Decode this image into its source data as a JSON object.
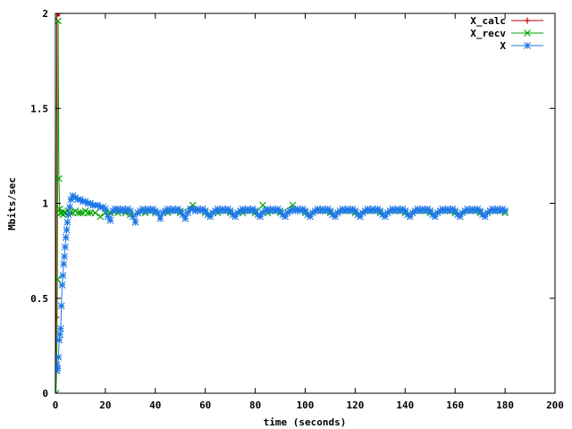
{
  "chart_data": {
    "type": "line",
    "title": "",
    "xlabel": "time (seconds)",
    "ylabel": "Mbits/sec",
    "xlim": [
      0,
      200
    ],
    "ylim": [
      0,
      2
    ],
    "x_ticks": [
      "0",
      "20",
      "40",
      "60",
      "80",
      "100",
      "120",
      "140",
      "160",
      "180",
      "200"
    ],
    "y_ticks": [
      "0",
      "0.5",
      "1",
      "1.5",
      "2"
    ],
    "grid": false,
    "legend_position": "top-right",
    "series": [
      {
        "name": "X_calc",
        "color": "#c00000",
        "marker": "plus",
        "points": [
          [
            0,
            0
          ],
          [
            0.3,
            0.4
          ],
          [
            0.6,
            2.0
          ],
          [
            0.9,
            2.0
          ],
          [
            1.2,
            2.0
          ],
          [
            1.5,
            2.0
          ]
        ]
      },
      {
        "name": "X_recv",
        "color": "#00a000",
        "marker": "cross",
        "points": [
          [
            0.2,
            0.0
          ],
          [
            0.5,
            0.12
          ],
          [
            0.8,
            0.6
          ],
          [
            1.1,
            1.96
          ],
          [
            1.4,
            1.13
          ],
          [
            1.7,
            0.97
          ],
          [
            2.0,
            0.95
          ],
          [
            2.5,
            0.95
          ],
          [
            3,
            0.94
          ],
          [
            3.5,
            0.95
          ],
          [
            4,
            0.95
          ],
          [
            5,
            0.96
          ],
          [
            6,
            0.95
          ],
          [
            7,
            0.95
          ],
          [
            8,
            0.96
          ],
          [
            9,
            0.95
          ],
          [
            10,
            0.95
          ],
          [
            11,
            0.95
          ],
          [
            12,
            0.96
          ],
          [
            13,
            0.95
          ],
          [
            14,
            0.95
          ],
          [
            16,
            0.95
          ],
          [
            18,
            0.93
          ],
          [
            20,
            0.95
          ],
          [
            22,
            0.95
          ],
          [
            25,
            0.95
          ],
          [
            28,
            0.95
          ],
          [
            30,
            0.94
          ],
          [
            33,
            0.95
          ],
          [
            36,
            0.95
          ],
          [
            40,
            0.95
          ],
          [
            45,
            0.95
          ],
          [
            50,
            0.95
          ],
          [
            55,
            0.99
          ],
          [
            60,
            0.95
          ],
          [
            65,
            0.95
          ],
          [
            70,
            0.95
          ],
          [
            75,
            0.95
          ],
          [
            80,
            0.95
          ],
          [
            83,
            0.99
          ],
          [
            85,
            0.95
          ],
          [
            90,
            0.95
          ],
          [
            95,
            0.99
          ],
          [
            100,
            0.95
          ],
          [
            110,
            0.95
          ],
          [
            120,
            0.95
          ],
          [
            130,
            0.95
          ],
          [
            140,
            0.95
          ],
          [
            150,
            0.95
          ],
          [
            160,
            0.95
          ],
          [
            170,
            0.95
          ],
          [
            180,
            0.95
          ]
        ]
      },
      {
        "name": "X",
        "color": "#1e78e6",
        "marker": "star",
        "points": [
          [
            0.3,
            0.12
          ],
          [
            0.6,
            0.15
          ],
          [
            0.9,
            0.13
          ],
          [
            1.2,
            0.19
          ],
          [
            1.5,
            0.28
          ],
          [
            1.8,
            0.31
          ],
          [
            2.1,
            0.34
          ],
          [
            2.4,
            0.46
          ],
          [
            2.7,
            0.57
          ],
          [
            3.0,
            0.62
          ],
          [
            3.3,
            0.68
          ],
          [
            3.6,
            0.72
          ],
          [
            3.9,
            0.77
          ],
          [
            4.2,
            0.82
          ],
          [
            4.5,
            0.86
          ],
          [
            4.8,
            0.9
          ],
          [
            5.2,
            0.94
          ],
          [
            5.7,
            0.98
          ],
          [
            6.2,
            1.02
          ],
          [
            7,
            1.04
          ],
          [
            8,
            1.03
          ],
          [
            9,
            1.02
          ],
          [
            10,
            1.02
          ],
          [
            11,
            1.01
          ],
          [
            12,
            1.01
          ],
          [
            13,
            1.0
          ],
          [
            14,
            1.0
          ],
          [
            15,
            0.99
          ],
          [
            16,
            0.99
          ],
          [
            17,
            0.99
          ],
          [
            18,
            0.98
          ],
          [
            19,
            0.98
          ],
          [
            20,
            0.97
          ],
          [
            21,
            0.93
          ],
          [
            22,
            0.91
          ],
          [
            23,
            0.96
          ],
          [
            24,
            0.97
          ],
          [
            25,
            0.97
          ],
          [
            26,
            0.96
          ],
          [
            27,
            0.97
          ],
          [
            28,
            0.96
          ],
          [
            29,
            0.97
          ],
          [
            30,
            0.96
          ],
          [
            31,
            0.93
          ],
          [
            32,
            0.9
          ],
          [
            33,
            0.95
          ],
          [
            34,
            0.96
          ],
          [
            35,
            0.97
          ],
          [
            36,
            0.96
          ],
          [
            37,
            0.97
          ],
          [
            38,
            0.96
          ],
          [
            39,
            0.97
          ],
          [
            40,
            0.96
          ],
          [
            41,
            0.95
          ],
          [
            42,
            0.92
          ],
          [
            43,
            0.95
          ],
          [
            44,
            0.96
          ],
          [
            45,
            0.97
          ],
          [
            46,
            0.96
          ],
          [
            47,
            0.97
          ],
          [
            48,
            0.96
          ],
          [
            49,
            0.97
          ],
          [
            50,
            0.96
          ],
          [
            51,
            0.94
          ],
          [
            52,
            0.92
          ],
          [
            53,
            0.95
          ],
          [
            54,
            0.97
          ],
          [
            55,
            0.97
          ],
          [
            56,
            0.96
          ],
          [
            57,
            0.97
          ],
          [
            58,
            0.96
          ],
          [
            59,
            0.97
          ],
          [
            60,
            0.96
          ],
          [
            61,
            0.94
          ],
          [
            62,
            0.93
          ],
          [
            63,
            0.95
          ],
          [
            64,
            0.96
          ],
          [
            65,
            0.97
          ],
          [
            66,
            0.96
          ],
          [
            67,
            0.97
          ],
          [
            68,
            0.96
          ],
          [
            69,
            0.97
          ],
          [
            70,
            0.96
          ],
          [
            71,
            0.94
          ],
          [
            72,
            0.93
          ],
          [
            73,
            0.95
          ],
          [
            74,
            0.96
          ],
          [
            75,
            0.97
          ],
          [
            76,
            0.96
          ],
          [
            77,
            0.97
          ],
          [
            78,
            0.96
          ],
          [
            79,
            0.97
          ],
          [
            80,
            0.96
          ],
          [
            81,
            0.94
          ],
          [
            82,
            0.93
          ],
          [
            83,
            0.95
          ],
          [
            84,
            0.96
          ],
          [
            85,
            0.97
          ],
          [
            86,
            0.96
          ],
          [
            87,
            0.97
          ],
          [
            88,
            0.96
          ],
          [
            89,
            0.97
          ],
          [
            90,
            0.96
          ],
          [
            91,
            0.94
          ],
          [
            92,
            0.93
          ],
          [
            93,
            0.95
          ],
          [
            94,
            0.96
          ],
          [
            95,
            0.97
          ],
          [
            96,
            0.96
          ],
          [
            97,
            0.97
          ],
          [
            98,
            0.96
          ],
          [
            99,
            0.97
          ],
          [
            100,
            0.96
          ],
          [
            101,
            0.94
          ],
          [
            102,
            0.93
          ],
          [
            103,
            0.95
          ],
          [
            104,
            0.96
          ],
          [
            105,
            0.97
          ],
          [
            106,
            0.96
          ],
          [
            107,
            0.97
          ],
          [
            108,
            0.96
          ],
          [
            109,
            0.97
          ],
          [
            110,
            0.96
          ],
          [
            111,
            0.94
          ],
          [
            112,
            0.93
          ],
          [
            113,
            0.95
          ],
          [
            114,
            0.96
          ],
          [
            115,
            0.97
          ],
          [
            116,
            0.96
          ],
          [
            117,
            0.97
          ],
          [
            118,
            0.96
          ],
          [
            119,
            0.97
          ],
          [
            120,
            0.96
          ],
          [
            121,
            0.94
          ],
          [
            122,
            0.93
          ],
          [
            123,
            0.95
          ],
          [
            124,
            0.96
          ],
          [
            125,
            0.97
          ],
          [
            126,
            0.96
          ],
          [
            127,
            0.97
          ],
          [
            128,
            0.96
          ],
          [
            129,
            0.97
          ],
          [
            130,
            0.96
          ],
          [
            131,
            0.94
          ],
          [
            132,
            0.93
          ],
          [
            133,
            0.95
          ],
          [
            134,
            0.96
          ],
          [
            135,
            0.97
          ],
          [
            136,
            0.96
          ],
          [
            137,
            0.97
          ],
          [
            138,
            0.96
          ],
          [
            139,
            0.97
          ],
          [
            140,
            0.96
          ],
          [
            141,
            0.94
          ],
          [
            142,
            0.93
          ],
          [
            143,
            0.95
          ],
          [
            144,
            0.96
          ],
          [
            145,
            0.97
          ],
          [
            146,
            0.96
          ],
          [
            147,
            0.97
          ],
          [
            148,
            0.96
          ],
          [
            149,
            0.97
          ],
          [
            150,
            0.96
          ],
          [
            151,
            0.94
          ],
          [
            152,
            0.93
          ],
          [
            153,
            0.95
          ],
          [
            154,
            0.96
          ],
          [
            155,
            0.97
          ],
          [
            156,
            0.96
          ],
          [
            157,
            0.97
          ],
          [
            158,
            0.96
          ],
          [
            159,
            0.97
          ],
          [
            160,
            0.96
          ],
          [
            161,
            0.94
          ],
          [
            162,
            0.93
          ],
          [
            163,
            0.95
          ],
          [
            164,
            0.96
          ],
          [
            165,
            0.97
          ],
          [
            166,
            0.96
          ],
          [
            167,
            0.97
          ],
          [
            168,
            0.96
          ],
          [
            169,
            0.97
          ],
          [
            170,
            0.96
          ],
          [
            171,
            0.94
          ],
          [
            172,
            0.93
          ],
          [
            173,
            0.95
          ],
          [
            174,
            0.96
          ],
          [
            175,
            0.97
          ],
          [
            176,
            0.96
          ],
          [
            177,
            0.97
          ],
          [
            178,
            0.96
          ],
          [
            179,
            0.97
          ],
          [
            180,
            0.96
          ]
        ]
      }
    ]
  }
}
